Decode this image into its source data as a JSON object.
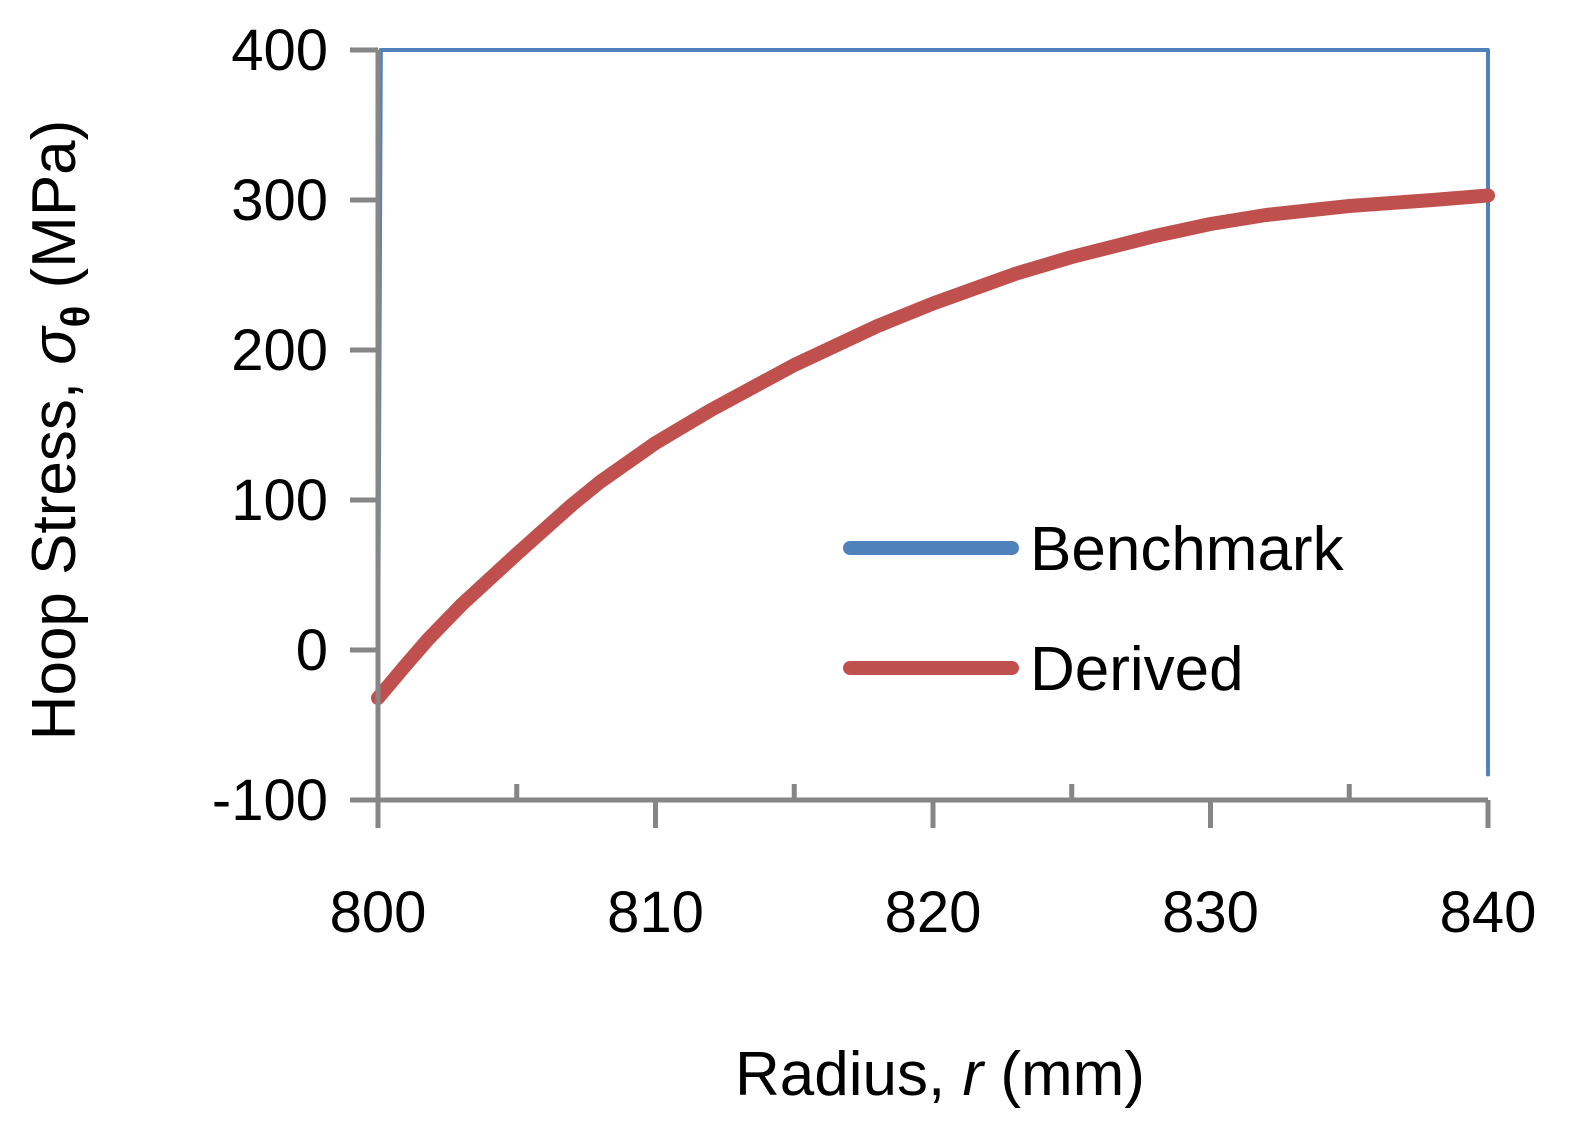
{
  "chart_data": {
    "type": "line",
    "title": "",
    "xlabel": {
      "prefix": "Radius, ",
      "symbol": "r",
      "unit": " (mm)"
    },
    "ylabel": {
      "prefix": "Hoop Stress, ",
      "symbol": "σ",
      "subscript": "θ",
      "unit": " (MPa)"
    },
    "xlim": [
      800,
      840
    ],
    "ylim": [
      -100,
      400
    ],
    "xticks": [
      800,
      810,
      820,
      830,
      840
    ],
    "xtick_labels": [
      "800",
      "810",
      "820",
      "830",
      "840"
    ],
    "yticks": [
      -100,
      0,
      100,
      200,
      300,
      400
    ],
    "ytick_labels": [
      "-100",
      "0",
      "100",
      "200",
      "300",
      "400"
    ],
    "grid": false,
    "legend_position": "center-right",
    "series": [
      {
        "name": "Benchmark",
        "color": "#4f81bd",
        "x": [
          800,
          800.1,
          801,
          801.8,
          803,
          805,
          807,
          808,
          810,
          812,
          814,
          815,
          818,
          820,
          823,
          825,
          828,
          830,
          832,
          835,
          838,
          840,
          840
        ],
        "y": [
          -35,
          400,
          400,
          400,
          400,
          400,
          400,
          400,
          400,
          400,
          400,
          400,
          400,
          400,
          400,
          400,
          400,
          400,
          400,
          400,
          400,
          400,
          -83
        ]
      },
      {
        "name": "Derived",
        "color": "#c0504d",
        "x": [
          800,
          801,
          801.8,
          803,
          805,
          807,
          808,
          810,
          812,
          814,
          815,
          818,
          820,
          823,
          825,
          828,
          830,
          832,
          835,
          838,
          840
        ],
        "y": [
          -32,
          -10,
          7,
          30,
          64,
          97,
          112,
          138,
          160,
          180,
          190,
          216,
          231,
          251,
          262,
          276,
          284,
          290,
          296,
          300,
          303
        ]
      }
    ],
    "legend": {
      "entries": [
        {
          "label": "Benchmark",
          "color": "#4f81bd"
        },
        {
          "label": "Derived",
          "color": "#c0504d"
        }
      ]
    },
    "colors": {
      "axis": "#868686",
      "benchmark": "#4f81bd",
      "derived": "#c0504d"
    }
  }
}
